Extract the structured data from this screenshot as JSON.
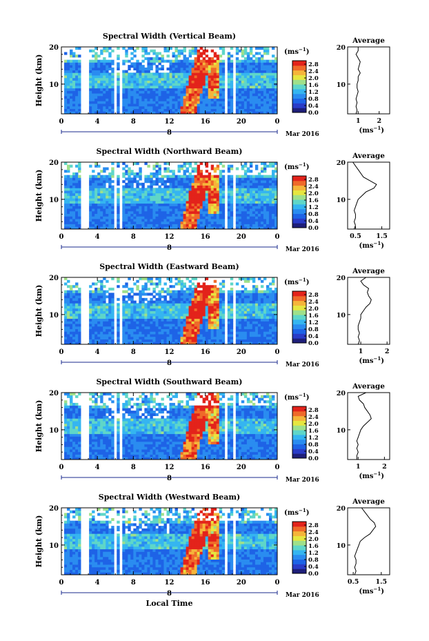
{
  "figure": {
    "xlabel_common": "Local Time",
    "date_label": "Mar 2016",
    "day_label": "8",
    "ylabel": "Height (km)",
    "cbar_unit": "(ms",
    "cbar_unit_exp": "−1",
    "cbar_unit_close": ")",
    "avg_title": "Average",
    "avg_unit": "(ms",
    "avg_unit_exp": "−1",
    "avg_unit_close": ")"
  },
  "palette": [
    "#1f1f7a",
    "#2a3cc8",
    "#1e63e6",
    "#2a8cf0",
    "#35b5f0",
    "#5fd6c8",
    "#9fe08a",
    "#e6e640",
    "#f5b53a",
    "#ef6a2a",
    "#e3231b"
  ],
  "chart_data": [
    {
      "type": "heatmap",
      "title": "Spectral Width (Vertical Beam)",
      "x_ticks": [
        "0",
        "4",
        "8",
        "12",
        "16",
        "20",
        "0"
      ],
      "x_values": [
        0,
        4,
        8,
        12,
        16,
        20,
        24
      ],
      "xlim": [
        0,
        24
      ],
      "y_ticks": [
        "10",
        "20"
      ],
      "y_values": [
        10,
        20
      ],
      "ylim": [
        2,
        20
      ],
      "colorbar_ticks": [
        "0.0",
        "0.4",
        "0.8",
        "1.2",
        "1.6",
        "2.0",
        "2.4",
        "2.8"
      ],
      "colorbar_range": [
        0,
        3.0
      ],
      "avg_profile": {
        "x_ticks": [
          "1",
          "2"
        ],
        "x_values": [
          1,
          2
        ],
        "xlim": [
          0.5,
          2.5
        ],
        "height_km": [
          2,
          3,
          4,
          5,
          6,
          7,
          8,
          9,
          10,
          11,
          12,
          13,
          14,
          15,
          16,
          17,
          18,
          19,
          20
        ],
        "width_ms": [
          0.9,
          0.95,
          0.9,
          0.95,
          0.9,
          0.95,
          1.0,
          0.95,
          0.95,
          1.0,
          1.0,
          1.1,
          1.0,
          1.05,
          1.1,
          1.0,
          0.9,
          1.0,
          1.0
        ]
      }
    },
    {
      "type": "heatmap",
      "title": "Spectral Width (Northward Beam)",
      "x_ticks": [
        "0",
        "4",
        "8",
        "12",
        "16",
        "20",
        "0"
      ],
      "x_values": [
        0,
        4,
        8,
        12,
        16,
        20,
        24
      ],
      "xlim": [
        0,
        24
      ],
      "y_ticks": [
        "10",
        "20"
      ],
      "y_values": [
        10,
        20
      ],
      "ylim": [
        2,
        20
      ],
      "colorbar_ticks": [
        "0.0",
        "0.4",
        "0.8",
        "1.2",
        "1.6",
        "2.0",
        "2.4",
        "2.8"
      ],
      "colorbar_range": [
        0,
        3.0
      ],
      "avg_profile": {
        "x_ticks": [
          "0.5",
          "1.5"
        ],
        "x_values": [
          0.5,
          1.5
        ],
        "xlim": [
          0.2,
          1.8
        ],
        "height_km": [
          2,
          3,
          4,
          5,
          6,
          7,
          8,
          9,
          10,
          11,
          12,
          13,
          14,
          15,
          16,
          17,
          18,
          19,
          20
        ],
        "width_ms": [
          0.45,
          0.5,
          0.45,
          0.5,
          0.5,
          0.45,
          0.5,
          0.55,
          0.6,
          0.75,
          0.9,
          1.2,
          1.3,
          1.05,
          0.8,
          0.7,
          0.6,
          0.5,
          0.4
        ]
      }
    },
    {
      "type": "heatmap",
      "title": "Spectral Width (Eastward Beam)",
      "x_ticks": [
        "0",
        "4",
        "8",
        "12",
        "16",
        "20",
        "0"
      ],
      "x_values": [
        0,
        4,
        8,
        12,
        16,
        20,
        24
      ],
      "xlim": [
        0,
        24
      ],
      "y_ticks": [
        "10",
        "20"
      ],
      "y_values": [
        10,
        20
      ],
      "ylim": [
        2,
        20
      ],
      "colorbar_ticks": [
        "0.0",
        "0.4",
        "0.8",
        "1.2",
        "1.6",
        "2.0",
        "2.4",
        "2.8"
      ],
      "colorbar_range": [
        0,
        3.0
      ],
      "avg_profile": {
        "x_ticks": [
          "1",
          "2"
        ],
        "x_values": [
          1,
          2
        ],
        "xlim": [
          0.5,
          2.1
        ],
        "height_km": [
          2,
          3,
          4,
          5,
          6,
          7,
          8,
          9,
          10,
          11,
          12,
          13,
          14,
          15,
          16,
          17,
          18,
          19,
          20
        ],
        "width_ms": [
          0.9,
          0.95,
          0.9,
          0.95,
          0.9,
          0.9,
          0.95,
          1.0,
          1.0,
          1.1,
          1.2,
          1.35,
          1.4,
          1.3,
          1.25,
          1.3,
          1.1,
          1.0,
          1.2
        ]
      }
    },
    {
      "type": "heatmap",
      "title": "Spectral Width (Southward Beam)",
      "x_ticks": [
        "0",
        "4",
        "8",
        "12",
        "16",
        "20",
        "0"
      ],
      "x_values": [
        0,
        4,
        8,
        12,
        16,
        20,
        24
      ],
      "xlim": [
        0,
        24
      ],
      "y_ticks": [
        "10",
        "20"
      ],
      "y_values": [
        10,
        20
      ],
      "ylim": [
        2,
        20
      ],
      "colorbar_ticks": [
        "0.0",
        "0.4",
        "0.8",
        "1.2",
        "1.6",
        "2.0",
        "2.4",
        "2.8"
      ],
      "colorbar_range": [
        0,
        3.0
      ],
      "avg_profile": {
        "x_ticks": [
          "1",
          "2"
        ],
        "x_values": [
          1,
          2
        ],
        "xlim": [
          0.6,
          2.2
        ],
        "height_km": [
          2,
          3,
          4,
          5,
          6,
          7,
          8,
          9,
          10,
          11,
          12,
          13,
          14,
          15,
          16,
          17,
          18,
          19,
          20
        ],
        "width_ms": [
          0.95,
          0.95,
          1.0,
          0.95,
          1.0,
          0.95,
          1.0,
          1.05,
          1.1,
          1.2,
          1.35,
          1.5,
          1.45,
          1.35,
          1.25,
          1.2,
          1.05,
          1.0,
          1.3
        ]
      }
    },
    {
      "type": "heatmap",
      "title": "Spectral Width (Westward Beam)",
      "x_ticks": [
        "0",
        "4",
        "8",
        "12",
        "16",
        "20",
        "0"
      ],
      "x_values": [
        0,
        4,
        8,
        12,
        16,
        20,
        24
      ],
      "xlim": [
        0,
        24
      ],
      "y_ticks": [
        "10",
        "20"
      ],
      "y_values": [
        10,
        20
      ],
      "ylim": [
        2,
        20
      ],
      "colorbar_ticks": [
        "0.0",
        "0.4",
        "0.8",
        "1.2",
        "1.6",
        "2.0",
        "2.4",
        "2.8"
      ],
      "colorbar_range": [
        0,
        3.0
      ],
      "avg_profile": {
        "x_ticks": [
          "0.5",
          "1.5"
        ],
        "x_values": [
          0.5,
          1.5
        ],
        "xlim": [
          0.3,
          1.8
        ],
        "height_km": [
          2,
          3,
          4,
          5,
          6,
          7,
          8,
          9,
          10,
          11,
          12,
          13,
          14,
          15,
          16,
          17,
          18,
          19,
          20
        ],
        "width_ms": [
          0.55,
          0.6,
          0.55,
          0.6,
          0.6,
          0.55,
          0.6,
          0.65,
          0.7,
          0.75,
          0.9,
          1.1,
          1.2,
          1.3,
          1.25,
          1.1,
          1.0,
          0.9,
          0.8
        ]
      }
    }
  ]
}
